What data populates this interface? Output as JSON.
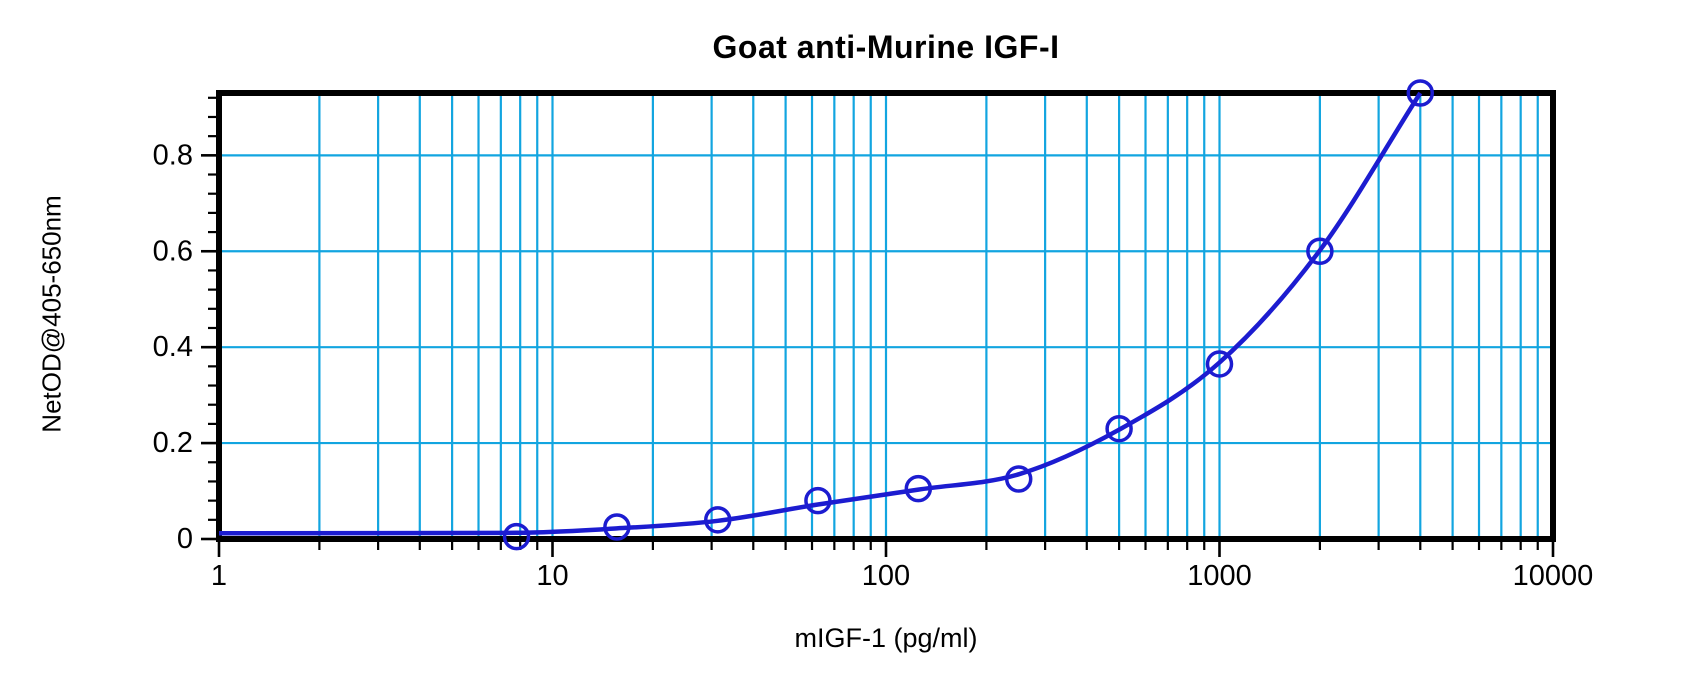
{
  "chart_data": {
    "type": "scatter",
    "title": "Goat anti-Murine IGF-I",
    "xlabel": "mIGF-1 (pg/ml)",
    "ylabel": "NetOD@405-650nm",
    "x_scale": "log10",
    "xlim": [
      1,
      10000
    ],
    "ylim": [
      0,
      0.93
    ],
    "x": [
      7.8,
      15.6,
      31.3,
      62.5,
      125,
      250,
      500,
      1000,
      2000,
      4000
    ],
    "y": [
      0.005,
      0.025,
      0.04,
      0.08,
      0.105,
      0.125,
      0.23,
      0.365,
      0.6,
      0.93
    ],
    "fit_curve": [
      [
        1,
        0.012
      ],
      [
        7.8,
        0.013
      ],
      [
        15.6,
        0.022
      ],
      [
        31.3,
        0.038
      ],
      [
        62.5,
        0.072
      ],
      [
        125,
        0.103
      ],
      [
        250,
        0.135
      ],
      [
        500,
        0.228
      ],
      [
        1000,
        0.368
      ],
      [
        2000,
        0.602
      ],
      [
        4000,
        0.93
      ]
    ],
    "x_tick_values": [
      1,
      10,
      100,
      1000,
      10000
    ],
    "x_tick_labels": [
      "1",
      "10",
      "100",
      "1000",
      "10000"
    ],
    "y_tick_values": [
      0,
      0.2,
      0.4,
      0.6,
      0.8
    ],
    "y_tick_labels": [
      "0",
      "0.2",
      "0.4",
      "0.6",
      "0.8"
    ],
    "y_minor_step": 0.04,
    "grid": {
      "vertical": "log minors 2-9 each decade plus decade lines",
      "horizontal": "majors only",
      "on": true
    },
    "legend": "none",
    "marker": "open-circle",
    "colors": {
      "grid": "#12A5E0",
      "series": "#1C1CD0",
      "axis": "#000000",
      "background": "#FFFFFF"
    }
  }
}
